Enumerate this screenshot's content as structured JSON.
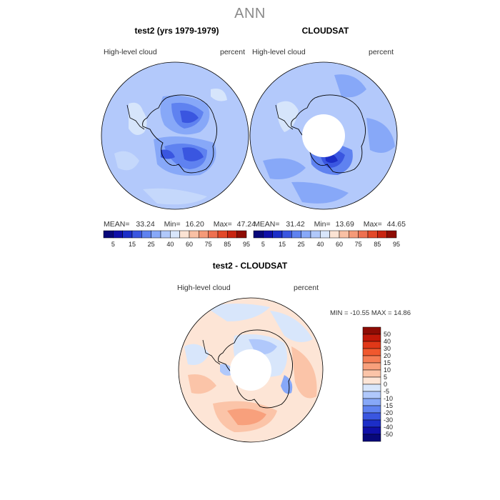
{
  "header": {
    "title": "ANN"
  },
  "panels": [
    {
      "title": "test2 (yrs 1979-1979)",
      "variable": "High-level cloud",
      "units": "percent",
      "mean_label": "MEAN=",
      "mean": "33.24",
      "min_label": "Min=",
      "min": "16.20",
      "max_label": "Max=",
      "max": "47.24"
    },
    {
      "title": "CLOUDSAT",
      "variable": "High-level cloud",
      "units": "percent",
      "mean_label": "MEAN=",
      "mean": "31.42",
      "min_label": "Min=",
      "min": "13.69",
      "max_label": "Max=",
      "max": "44.65"
    }
  ],
  "diff_panel": {
    "title": "test2 - CLOUDSAT",
    "variable": "High-level cloud",
    "units": "percent",
    "minmax_text": "MIN = -10.55 MAX =  14.86"
  },
  "colorbar_abs": {
    "colors": [
      "#08087a",
      "#1010a8",
      "#1c2ec8",
      "#3a56e0",
      "#5f82f0",
      "#87a8f8",
      "#b0c8fb",
      "#d8e6fb",
      "#fbe3d3",
      "#f9c0a4",
      "#f59a78",
      "#ee7050",
      "#e24828",
      "#c82410",
      "#8e0c04"
    ],
    "labels": [
      "5",
      "15",
      "25",
      "40",
      "60",
      "75",
      "85",
      "95"
    ]
  },
  "colorbar_diff": {
    "colors": [
      "#8e0c04",
      "#c01808",
      "#e03818",
      "#f0582e",
      "#f57d55",
      "#f8a07c",
      "#fbc4a8",
      "#fde5d6",
      "#d8e6fb",
      "#b0c8fb",
      "#87a8f8",
      "#5f82f0",
      "#3a56e0",
      "#1c2ec8",
      "#1010a8",
      "#08087a"
    ],
    "labels": [
      "50",
      "40",
      "30",
      "20",
      "15",
      "10",
      "5",
      "0",
      "-5",
      "-10",
      "-15",
      "-20",
      "-30",
      "-40",
      "-50"
    ]
  }
}
